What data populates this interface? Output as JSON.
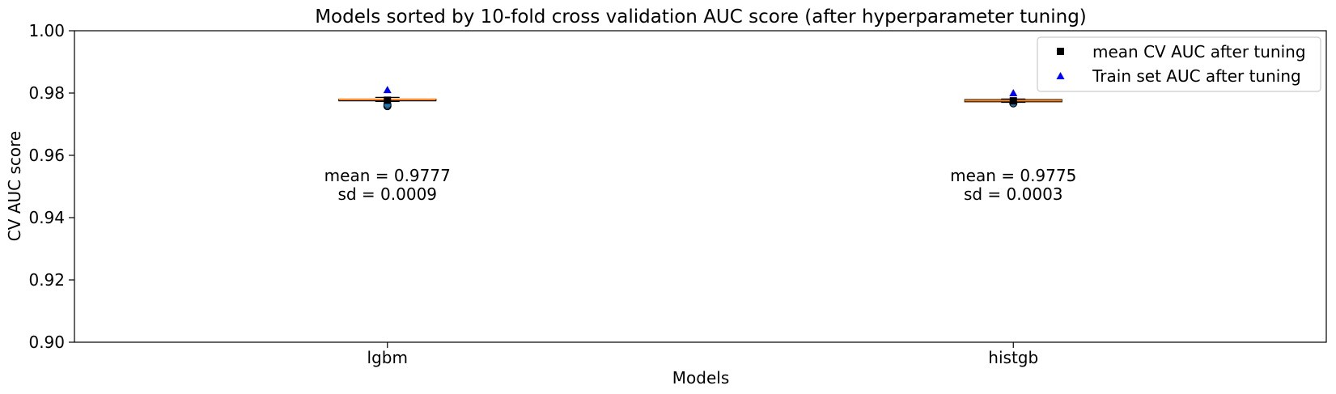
{
  "chart_data": {
    "type": "box",
    "title": "Models sorted by 10-fold cross validation AUC score (after hyperparameter tuning)",
    "xlabel": "Models",
    "ylabel": "CV AUC score",
    "ylim": [
      0.9,
      1.0
    ],
    "yticks": [
      "0.90",
      "0.92",
      "0.94",
      "0.96",
      "0.98",
      "1.00"
    ],
    "categories": [
      "lgbm",
      "histgb"
    ],
    "boxes": [
      {
        "model": "lgbm",
        "whisker_low": 0.9773,
        "q1": 0.9775,
        "median": 0.978,
        "q3": 0.978,
        "whisker_high": 0.9786,
        "outliers": [
          0.9758,
          0.9762
        ],
        "mean_cv_auc": 0.9777,
        "train_auc": 0.981,
        "annotation_mean": "mean = 0.9777",
        "annotation_sd": "sd = 0.0009"
      },
      {
        "model": "histgb",
        "whisker_low": 0.977,
        "q1": 0.9772,
        "median": 0.9776,
        "q3": 0.9779,
        "whisker_high": 0.9781,
        "outliers": [
          0.9767
        ],
        "mean_cv_auc": 0.9775,
        "train_auc": 0.98,
        "annotation_mean": "mean = 0.9775",
        "annotation_sd": "sd = 0.0003"
      }
    ],
    "legend": {
      "position": "top-right",
      "entries": [
        {
          "label": "mean CV AUC after tuning",
          "marker": "square",
          "color": "#000000"
        },
        {
          "label": "Train set AUC after tuning",
          "marker": "triangle",
          "color": "#0000ff"
        }
      ]
    },
    "colors": {
      "median": "#ff7f0e",
      "box": "#000000",
      "outlier_fill": "#1f77b4",
      "train_marker": "#0000ff",
      "mean_marker": "#000000"
    },
    "grid": false
  }
}
